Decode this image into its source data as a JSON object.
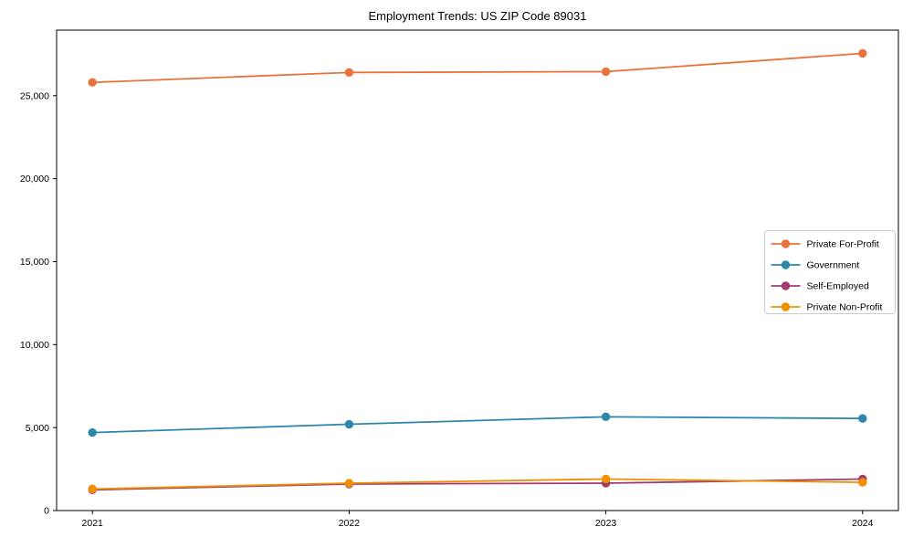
{
  "figure": {
    "background": "#ffffff",
    "axis_color": "#000000",
    "legend_border_color": "#cccccc",
    "legend_background": "#ffffff"
  },
  "chart_data": {
    "type": "line",
    "title": "Employment Trends: US ZIP Code 89031",
    "xlabel": "",
    "ylabel": "",
    "categories": [
      "2021",
      "2022",
      "2023",
      "2024"
    ],
    "series": [
      {
        "name": "Private For-Profit",
        "color": "#E8743B",
        "values": [
          25800,
          26400,
          26450,
          27550
        ]
      },
      {
        "name": "Government",
        "color": "#2E86AB",
        "values": [
          4700,
          5200,
          5650,
          5550
        ]
      },
      {
        "name": "Self-Employed",
        "color": "#A23B72",
        "values": [
          1250,
          1600,
          1650,
          1900
        ]
      },
      {
        "name": "Private Non-Profit",
        "color": "#F18F01",
        "values": [
          1300,
          1650,
          1900,
          1700
        ]
      }
    ],
    "ylim": [
      0,
      28950
    ],
    "yticks": {
      "values": [
        0,
        5000,
        10000,
        15000,
        20000,
        25000
      ],
      "labels": [
        "0",
        "5,000",
        "10,000",
        "15,000",
        "20,000",
        "25,000"
      ]
    },
    "grid": false,
    "marker": "circle",
    "legend_position": "center-right"
  }
}
